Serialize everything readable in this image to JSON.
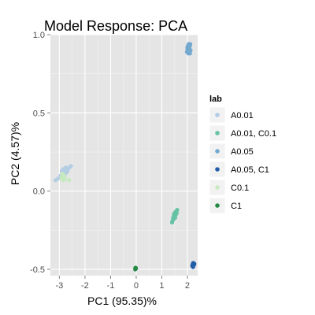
{
  "chart_data": {
    "type": "scatter",
    "title": "Model Response: PCA",
    "xlabel": "PC1 (95.35)%",
    "ylabel": "PC2 (4.57)%",
    "xlim": [
      -3.35,
      2.4
    ],
    "ylim": [
      -0.54,
      1.0
    ],
    "xticks": [
      -3,
      -2,
      -1,
      0,
      1,
      2
    ],
    "yticks": [
      -0.5,
      0.0,
      0.5,
      1.0
    ],
    "ytick_labels": [
      "-0.5",
      "0.0",
      "0.5",
      "1.0"
    ],
    "grid": true,
    "legend_title": "lab",
    "legend_position": "right",
    "series": [
      {
        "name": "A0.01",
        "color": "#b3cde3",
        "points": [
          [
            -2.55,
            0.16
          ],
          [
            -2.62,
            0.15
          ],
          [
            -2.7,
            0.14
          ],
          [
            -2.75,
            0.15
          ],
          [
            -2.8,
            0.13
          ],
          [
            -2.85,
            0.14
          ],
          [
            -2.9,
            0.13
          ],
          [
            -2.72,
            0.12
          ],
          [
            -2.95,
            0.1
          ],
          [
            -3.05,
            0.08
          ],
          [
            -3.15,
            0.07
          ],
          [
            -2.68,
            0.13
          ],
          [
            -2.78,
            0.11
          ],
          [
            -2.88,
            0.12
          ]
        ]
      },
      {
        "name": "A0.01, C0.1",
        "color": "#66c2a4",
        "points": [
          [
            1.5,
            -0.14
          ],
          [
            1.55,
            -0.15
          ],
          [
            1.48,
            -0.16
          ],
          [
            1.52,
            -0.17
          ],
          [
            1.45,
            -0.18
          ],
          [
            1.42,
            -0.19
          ],
          [
            1.4,
            -0.2
          ],
          [
            1.55,
            -0.13
          ],
          [
            1.6,
            -0.12
          ],
          [
            1.58,
            -0.14
          ],
          [
            1.47,
            -0.15
          ],
          [
            1.44,
            -0.17
          ]
        ]
      },
      {
        "name": "A0.05",
        "color": "#74a9cf",
        "points": [
          [
            2.05,
            0.94
          ],
          [
            2.1,
            0.93
          ],
          [
            2.0,
            0.92
          ],
          [
            2.08,
            0.91
          ],
          [
            2.12,
            0.9
          ],
          [
            2.02,
            0.9
          ],
          [
            2.06,
            0.89
          ],
          [
            1.98,
            0.89
          ],
          [
            2.04,
            0.88
          ],
          [
            2.1,
            0.88
          ],
          [
            2.0,
            0.91
          ],
          [
            2.07,
            0.92
          ],
          [
            2.03,
            0.93
          ],
          [
            2.11,
            0.94
          ]
        ]
      },
      {
        "name": "A0.05, C1",
        "color": "#225ea8",
        "points": [
          [
            2.22,
            -0.46
          ],
          [
            2.25,
            -0.465
          ],
          [
            2.2,
            -0.47
          ],
          [
            2.23,
            -0.475
          ],
          [
            2.26,
            -0.47
          ],
          [
            2.21,
            -0.48
          ],
          [
            2.24,
            -0.46
          ],
          [
            2.19,
            -0.478
          ],
          [
            2.27,
            -0.465
          ],
          [
            2.22,
            -0.485
          ]
        ]
      },
      {
        "name": "C0.1",
        "color": "#c7e9c0",
        "points": [
          [
            -2.82,
            0.1
          ],
          [
            -2.86,
            0.09
          ],
          [
            -2.78,
            0.08
          ],
          [
            -2.9,
            0.09
          ],
          [
            -2.84,
            0.07
          ],
          [
            -2.88,
            0.11
          ],
          [
            -2.8,
            0.095
          ],
          [
            -2.62,
            0.07
          ],
          [
            -2.92,
            0.08
          ]
        ]
      },
      {
        "name": "C1",
        "color": "#238b45",
        "points": [
          [
            -0.03,
            -0.49
          ],
          [
            -0.01,
            -0.495
          ],
          [
            -0.04,
            -0.5
          ],
          [
            -0.02,
            -0.49
          ],
          [
            -0.03,
            -0.495
          ]
        ]
      }
    ]
  }
}
